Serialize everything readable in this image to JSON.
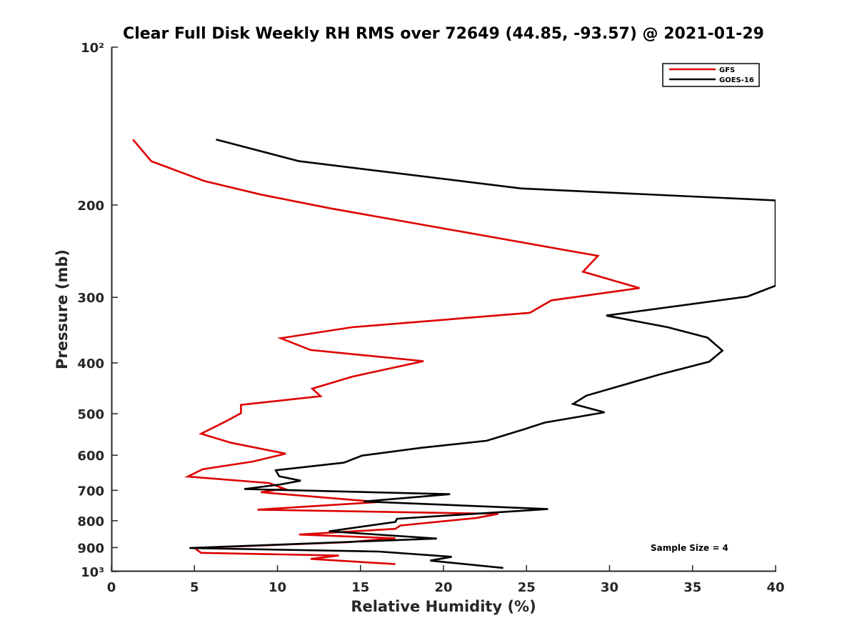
{
  "chart_data": {
    "type": "line",
    "title": "Clear Full Disk Weekly RH RMS over 72649 (44.85, -93.57) @ 2021-01-29",
    "xlabel": "Relative Humidity (%)",
    "ylabel": "Pressure (mb)",
    "xlim": [
      0,
      40
    ],
    "ylim": [
      100,
      1000
    ],
    "y_scale": "log",
    "y_reversed": true,
    "x_ticks": [
      0,
      5,
      10,
      15,
      20,
      25,
      30,
      35,
      40
    ],
    "x_tick_labels": [
      "0",
      "5",
      "10",
      "15",
      "20",
      "25",
      "30",
      "35",
      "40"
    ],
    "y_ticks": [
      100,
      200,
      300,
      400,
      500,
      600,
      700,
      800,
      900,
      1000
    ],
    "y_tick_labels": [
      "10²",
      "200",
      "300",
      "400",
      "500",
      "600",
      "700",
      "800",
      "900",
      "10³"
    ],
    "grid": false,
    "legend_position": "top-right",
    "annotation": "Sample Size = 4",
    "series": [
      {
        "name": "GFS",
        "color": "#dd0000",
        "points": [
          [
            1.3,
            150
          ],
          [
            2.4,
            165
          ],
          [
            5.6,
            180
          ],
          [
            9.0,
            191
          ],
          [
            13.2,
            203
          ],
          [
            29.3,
            250
          ],
          [
            28.4,
            268
          ],
          [
            31.8,
            288
          ],
          [
            26.5,
            304
          ],
          [
            25.2,
            321
          ],
          [
            14.5,
            342
          ],
          [
            10.2,
            359
          ],
          [
            12.0,
            378
          ],
          [
            18.8,
            397
          ],
          [
            14.5,
            425
          ],
          [
            12.1,
            448
          ],
          [
            12.6,
            463
          ],
          [
            7.8,
            481
          ],
          [
            7.8,
            499
          ],
          [
            6.9,
            517
          ],
          [
            5.4,
            546
          ],
          [
            7.2,
            568
          ],
          [
            10.5,
            596
          ],
          [
            8.5,
            617
          ],
          [
            5.5,
            638
          ],
          [
            4.6,
            659
          ],
          [
            9.5,
            678
          ],
          [
            10.4,
            695
          ],
          [
            9.0,
            706
          ],
          [
            16.1,
            737
          ],
          [
            8.8,
            762
          ],
          [
            23.3,
            776
          ],
          [
            22.0,
            790
          ],
          [
            17.4,
            817
          ],
          [
            17.1,
            829
          ],
          [
            11.3,
            850
          ],
          [
            17.1,
            864
          ],
          [
            14.2,
            879
          ],
          [
            5.0,
            902
          ],
          [
            5.4,
            921
          ],
          [
            13.7,
            932
          ],
          [
            12.0,
            946
          ],
          [
            17.1,
            968
          ]
        ]
      },
      {
        "name": "GOES-16",
        "color": "#000000",
        "points": [
          [
            6.3,
            150
          ],
          [
            11.3,
            165
          ],
          [
            24.7,
            186
          ],
          [
            40.0,
            196
          ],
          [
            40.0,
            285
          ],
          [
            38.3,
            299
          ],
          [
            29.8,
            325
          ],
          [
            33.5,
            342
          ],
          [
            35.9,
            358
          ],
          [
            36.8,
            379
          ],
          [
            36.0,
            398
          ],
          [
            33.0,
            421
          ],
          [
            28.6,
            462
          ],
          [
            27.8,
            479
          ],
          [
            29.7,
            497
          ],
          [
            26.1,
            520
          ],
          [
            24.8,
            536
          ],
          [
            22.6,
            563
          ],
          [
            18.6,
            581
          ],
          [
            15.1,
            601
          ],
          [
            14.0,
            620
          ],
          [
            9.9,
            641
          ],
          [
            10.1,
            658
          ],
          [
            11.4,
            671
          ],
          [
            10.2,
            682
          ],
          [
            8.0,
            696
          ],
          [
            20.4,
            712
          ],
          [
            15.2,
            735
          ],
          [
            26.3,
            760
          ],
          [
            17.2,
            793
          ],
          [
            17.1,
            804
          ],
          [
            13.1,
            838
          ],
          [
            19.6,
            865
          ],
          [
            4.7,
            902
          ],
          [
            16.1,
            916
          ],
          [
            20.5,
            937
          ],
          [
            19.2,
            953
          ],
          [
            23.6,
            984
          ]
        ]
      }
    ]
  }
}
